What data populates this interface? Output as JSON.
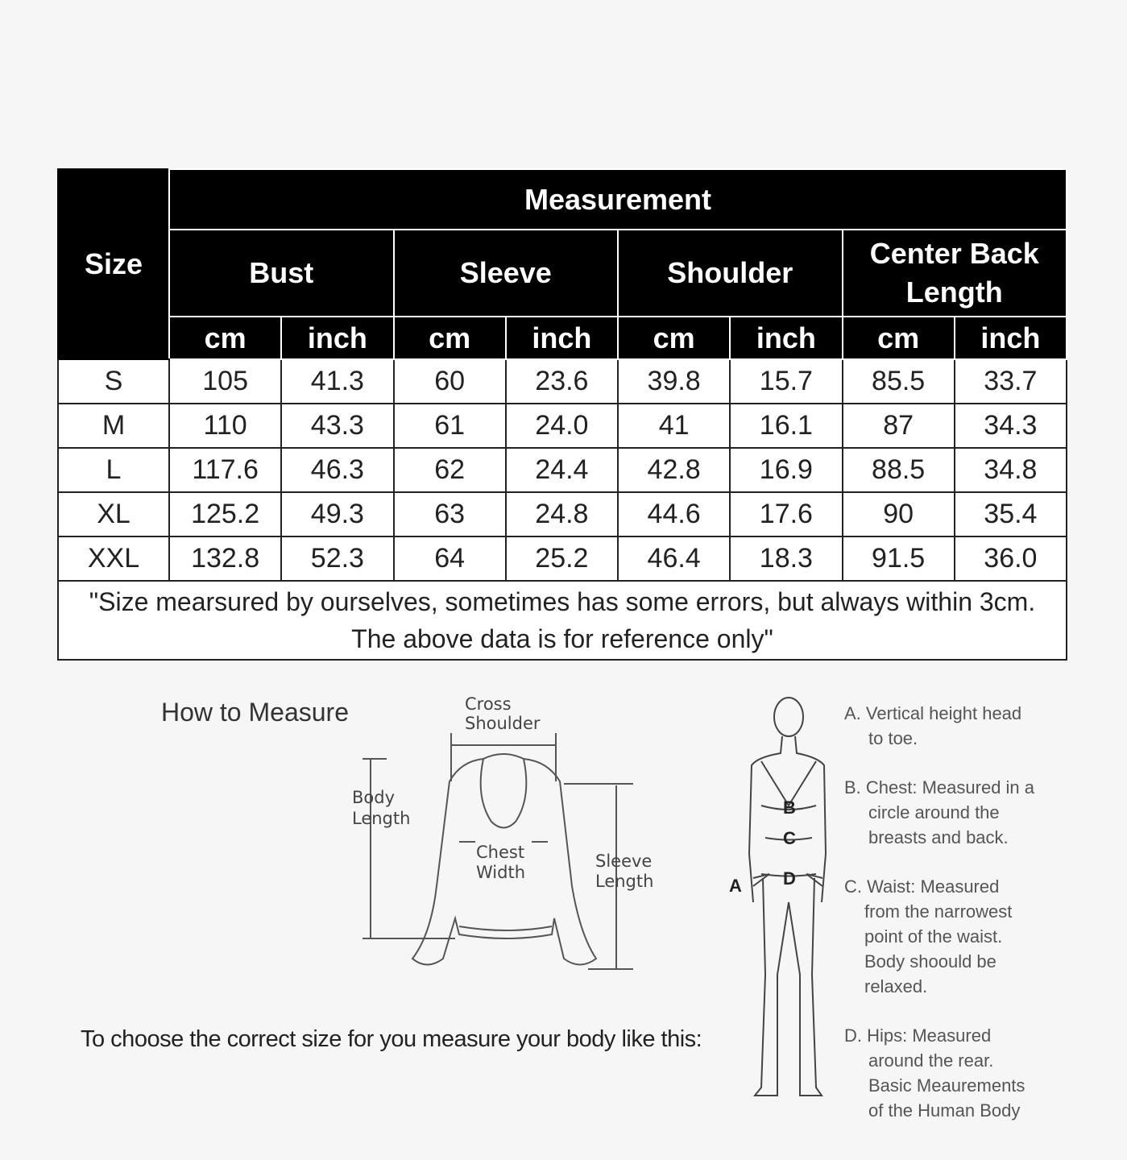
{
  "table": {
    "size_header": "Size",
    "measurement_header": "Measurement",
    "groups": [
      "Bust",
      "Sleeve",
      "Shoulder",
      "Center Back Length"
    ],
    "units": [
      "cm",
      "inch",
      "cm",
      "inch",
      "cm",
      "inch",
      "cm",
      "inch"
    ],
    "rows": [
      {
        "size": "S",
        "values": [
          "105",
          "41.3",
          "60",
          "23.6",
          "39.8",
          "15.7",
          "85.5",
          "33.7"
        ]
      },
      {
        "size": "M",
        "values": [
          "110",
          "43.3",
          "61",
          "24.0",
          "41",
          "16.1",
          "87",
          "34.3"
        ]
      },
      {
        "size": "L",
        "values": [
          "117.6",
          "46.3",
          "62",
          "24.4",
          "42.8",
          "16.9",
          "88.5",
          "34.8"
        ]
      },
      {
        "size": "XL",
        "values": [
          "125.2",
          "49.3",
          "63",
          "24.8",
          "44.6",
          "17.6",
          "90",
          "35.4"
        ]
      },
      {
        "size": "XXL",
        "values": [
          "132.8",
          "52.3",
          "64",
          "25.2",
          "46.4",
          "18.3",
          "91.5",
          "36.0"
        ]
      }
    ],
    "note_line1": "\"Size mearsured by ourselves, sometimes has some errors, but always within 3cm.",
    "note_line2": "The above data is for reference only\""
  },
  "how_to": {
    "title": "How to Measure",
    "choose_text": "To choose the correct size for you measure your body like this:",
    "garment_labels": {
      "cross_shoulder": [
        "Cross",
        "Shoulder"
      ],
      "body_length": [
        "Body",
        "Length"
      ],
      "chest_width": [
        "Chest",
        "Width"
      ],
      "sleeve_length": [
        "Sleeve",
        "Length"
      ]
    },
    "body_points": [
      "A",
      "B",
      "C",
      "D"
    ],
    "descriptions": [
      [
        "A. Vertical height head",
        "to toe."
      ],
      [
        "B. Chest: Measured in a",
        "circle around the",
        "breasts and back."
      ],
      [
        "C. Waist: Measured",
        "from the narrowest",
        "point of the waist.",
        "Body shoould be",
        "relaxed."
      ],
      [
        "D. Hips: Measured",
        "around the rear.",
        "Basic Meaurements",
        "of the Human Body"
      ]
    ]
  }
}
